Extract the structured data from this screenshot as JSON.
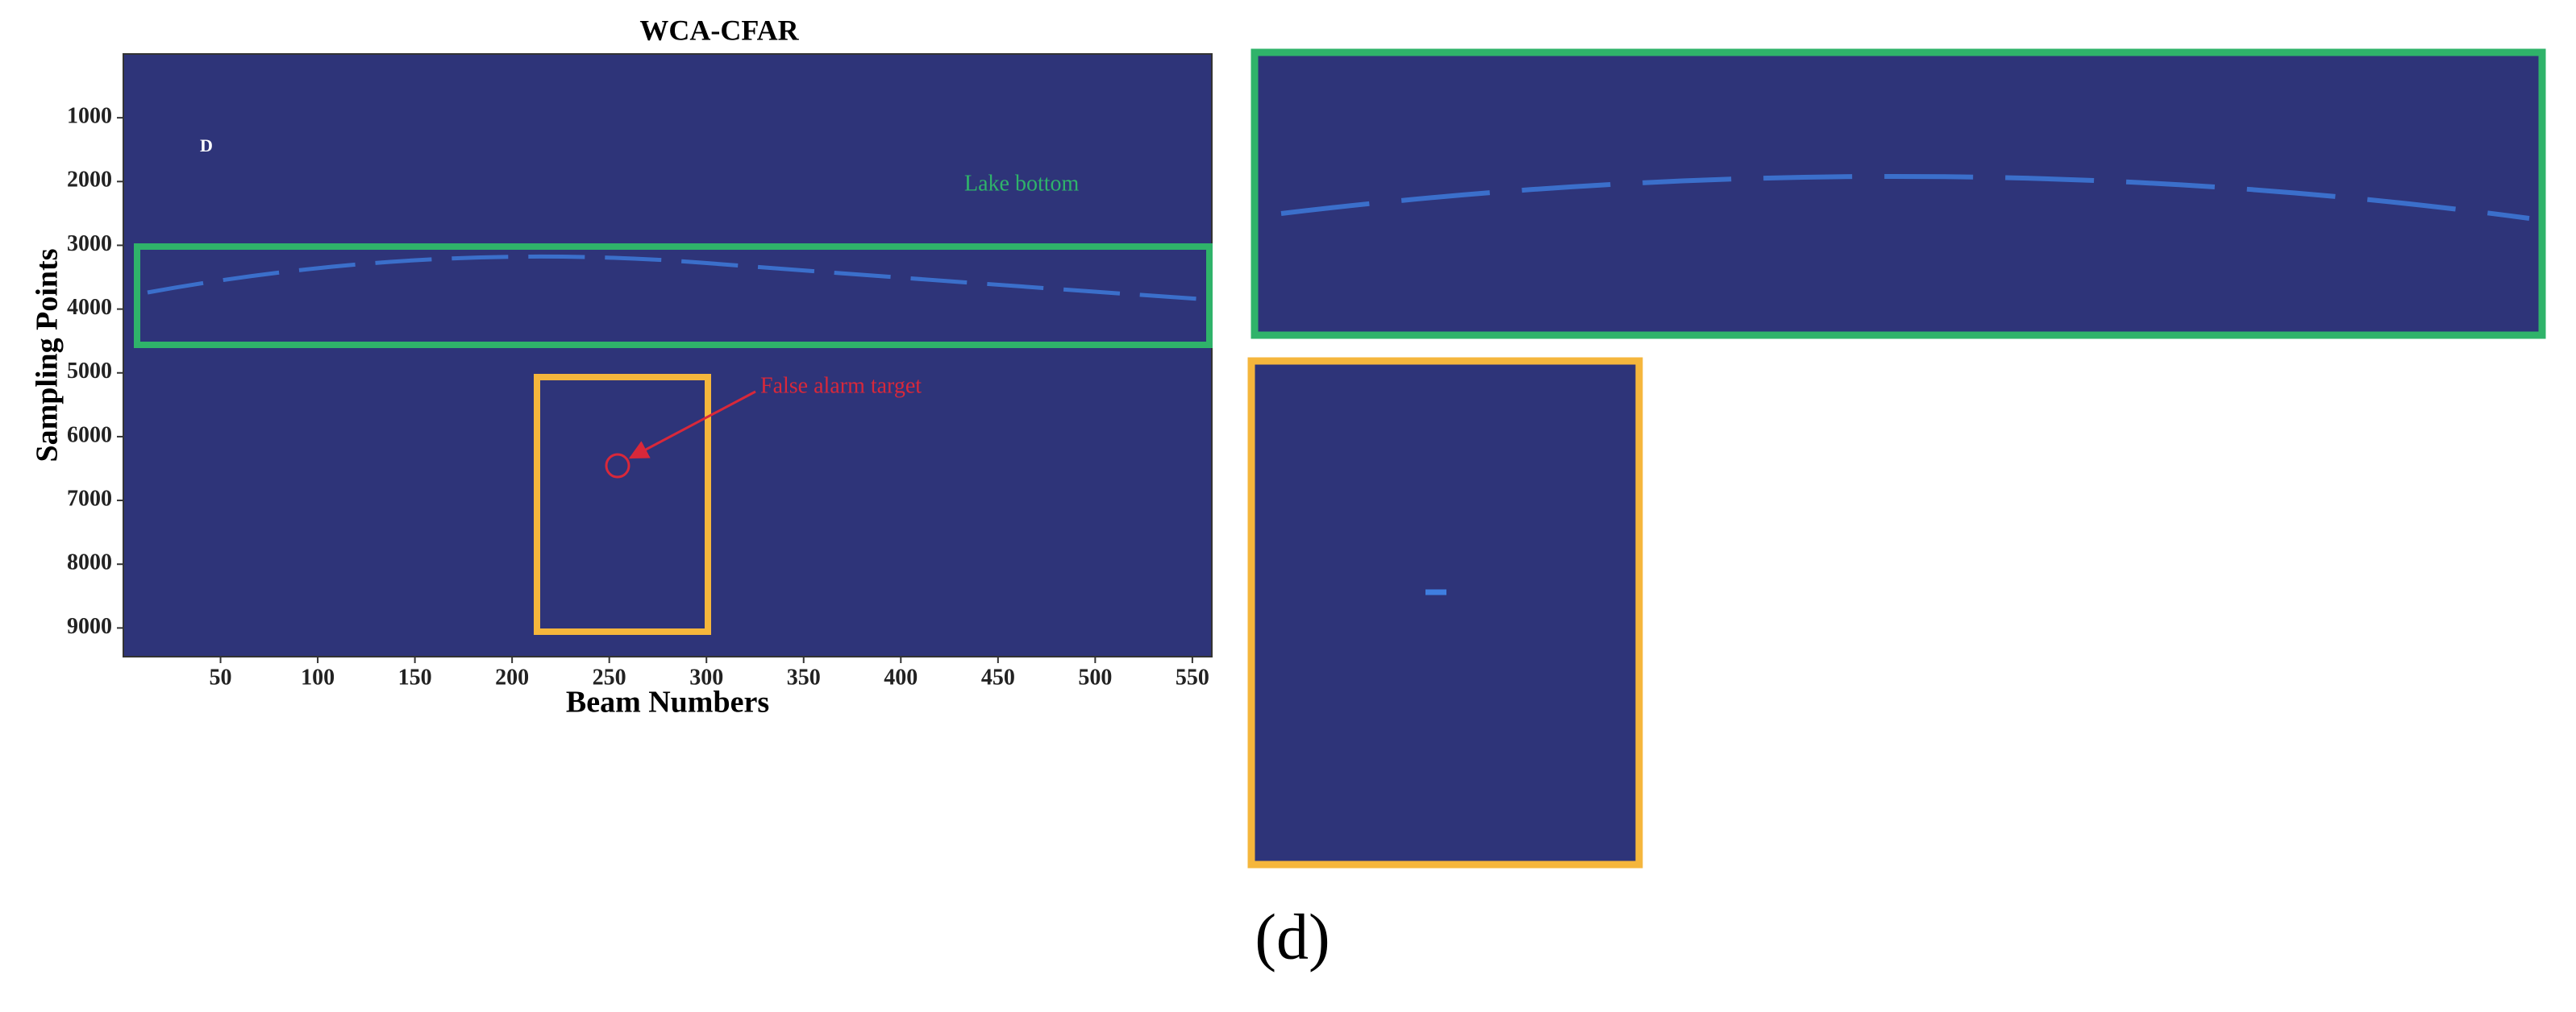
{
  "chart_data": {
    "type": "heatmap",
    "title": "WCA-CFAR",
    "xlabel": "Beam Numbers",
    "ylabel": "Sampling Points",
    "xlim": [
      0,
      560
    ],
    "ylim": [
      0,
      9450
    ],
    "xticks": [
      50,
      100,
      150,
      200,
      250,
      300,
      350,
      400,
      450,
      500,
      550
    ],
    "yticks": [
      1000,
      2000,
      3000,
      4000,
      5000,
      6000,
      7000,
      8000,
      9000
    ],
    "color": "#2e3479",
    "annotations": {
      "marker": "D",
      "region": "Lake bottom",
      "target": "False alarm target"
    }
  },
  "caption": "(d)"
}
